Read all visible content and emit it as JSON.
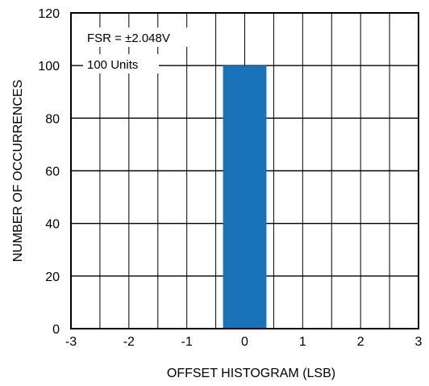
{
  "chart_data": {
    "type": "bar",
    "title": "",
    "xlabel": "OFFSET HISTOGRAM (LSB)",
    "ylabel": "NUMBER OF OCCURRENCES",
    "xlim": [
      -3,
      3
    ],
    "ylim": [
      0,
      120
    ],
    "x_ticks": [
      "-3",
      "-2",
      "-1",
      "0",
      "1",
      "2",
      "3"
    ],
    "y_ticks": [
      "0",
      "20",
      "40",
      "60",
      "80",
      "100",
      "120"
    ],
    "grid": true,
    "bars": [
      {
        "x": 0,
        "value": 100,
        "width": 0.75
      }
    ],
    "annotations": [
      "FSR = ±2.048V",
      "100 Units"
    ],
    "colors": {
      "bar": "#1a72b8",
      "grid": "#000000",
      "frame": "#000000"
    }
  }
}
